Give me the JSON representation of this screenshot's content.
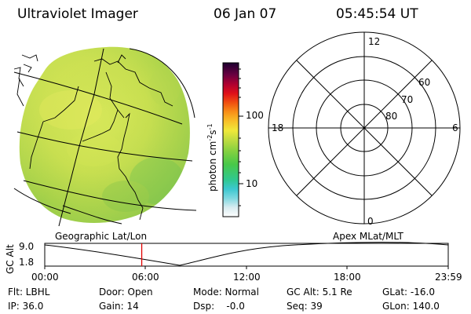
{
  "header": {
    "title": "Ultraviolet Imager",
    "date": "06 Jan 07",
    "time": "05:45:54 UT"
  },
  "colorbar": {
    "unit_label": "photon cm",
    "unit_exp1": "-2",
    "unit_mid": "s",
    "unit_exp2": "-1",
    "tick_labels": [
      "100",
      "10"
    ]
  },
  "polar": {
    "label_top": "12",
    "label_left": "18",
    "label_right": "6",
    "label_bottom": "0",
    "ring_labels": [
      "60",
      "70",
      "80"
    ]
  },
  "panel_labels": {
    "left": "Geographic Lat/Lon",
    "right": "Apex MLat/MLT"
  },
  "altitude_plot": {
    "ylabel": "GC Alt",
    "ytick_top": "9.0",
    "ytick_bottom": "1.8",
    "xticks": [
      "00:00",
      "06:00",
      "12:00",
      "18:00",
      "23:59"
    ],
    "current_time_hours": 5.765
  },
  "info": {
    "row1": {
      "filter": "Flt: LBHL",
      "door": "Door: Open",
      "mode": "Mode: Normal",
      "gc_alt": "GC Alt: 5.1 Re",
      "glat": "GLat: -16.0"
    },
    "row2": {
      "ip": "IP: 36.0",
      "gain": "Gain: 14",
      "dsp": "Dsp:    -0.0",
      "seq": "Seq: 39",
      "glon": "GLon: 140.0"
    }
  },
  "colors": {
    "red_marker": "#e00000"
  }
}
